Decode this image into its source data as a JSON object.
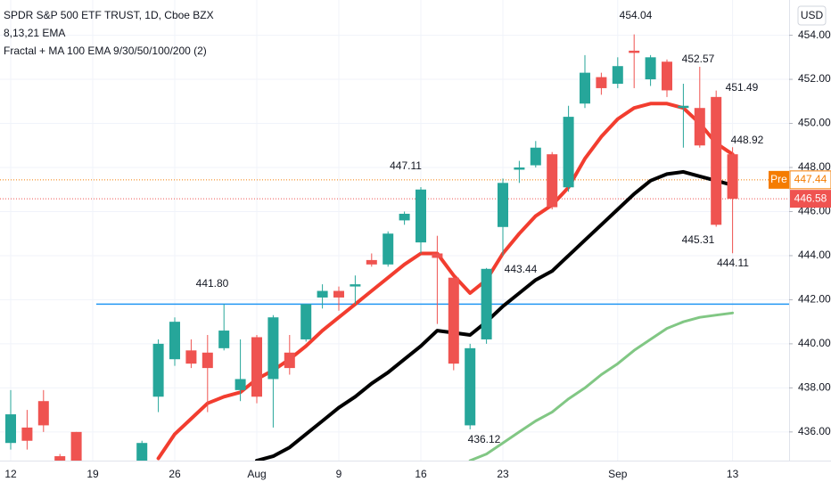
{
  "chart_data": {
    "type": "candlestick",
    "title": "SPDR S&P 500 ETF TRUST, 1D, Cboe BZX",
    "indicators": [
      "8,13,21 EMA",
      "Fractal + MA 100 EMA 9/30/50/100/200 (2)"
    ],
    "currency": "USD",
    "categories": [
      "12",
      null,
      null,
      null,
      null,
      "19",
      null,
      null,
      null,
      null,
      "26",
      null,
      null,
      null,
      null,
      "Aug",
      null,
      null,
      null,
      null,
      "9",
      null,
      null,
      null,
      null,
      "16",
      null,
      null,
      null,
      null,
      "23",
      null,
      null,
      null,
      null,
      null,
      null,
      "Sep",
      null,
      null,
      null,
      null,
      null,
      null,
      "13"
    ],
    "open": [
      435.5,
      436.2,
      437.4,
      434.9,
      436.0,
      null,
      null,
      null,
      434.5,
      437.6,
      439.3,
      439.7,
      439.6,
      439.8,
      437.9,
      440.3,
      438.4,
      439.6,
      440.2,
      442.1,
      442.4,
      442.6,
      443.8,
      443.6,
      445.6,
      444.6,
      444.1,
      443.0,
      436.3,
      440.2,
      445.3,
      447.9,
      448.1,
      448.6,
      447.1,
      450.9,
      452.1,
      451.8,
      453.3,
      452.0,
      452.8,
      450.7,
      450.7,
      451.2,
      448.6
    ],
    "high": [
      437.9,
      437.0,
      437.9,
      435.0,
      436.0,
      null,
      null,
      null,
      435.6,
      440.2,
      441.2,
      440.2,
      440.4,
      441.8,
      440.2,
      440.4,
      441.3,
      440.4,
      441.8,
      442.7,
      442.6,
      443.1,
      444.1,
      445.1,
      446.0,
      447.11,
      444.9,
      443.0,
      440.0,
      443.44,
      447.5,
      448.3,
      449.2,
      448.7,
      450.8,
      453.1,
      452.3,
      453.0,
      454.04,
      453.1,
      452.9,
      451.8,
      452.57,
      451.49,
      448.92
    ],
    "low": [
      435.2,
      435.2,
      436.0,
      434.0,
      433.5,
      null,
      null,
      null,
      434.2,
      436.9,
      439.0,
      438.9,
      436.9,
      439.7,
      437.4,
      437.3,
      436.2,
      438.6,
      440.1,
      441.6,
      441.5,
      441.8,
      443.5,
      443.5,
      445.4,
      444.1,
      440.9,
      438.8,
      436.12,
      440.0,
      444.0,
      447.3,
      448.0,
      446.1,
      446.9,
      450.7,
      451.3,
      451.6,
      451.6,
      451.7,
      451.2,
      448.9,
      448.9,
      445.31,
      444.11
    ],
    "close": [
      436.8,
      435.6,
      436.3,
      434.6,
      434.5,
      null,
      null,
      null,
      435.5,
      440.0,
      441.0,
      439.1,
      438.9,
      440.6,
      438.4,
      437.6,
      441.2,
      438.9,
      441.8,
      442.4,
      442.1,
      442.7,
      443.6,
      445.0,
      445.9,
      447.0,
      443.9,
      439.1,
      439.8,
      443.4,
      447.3,
      448.0,
      448.9,
      446.2,
      450.3,
      452.3,
      451.6,
      452.6,
      453.2,
      453.0,
      451.5,
      450.8,
      449.0,
      445.4,
      446.58
    ],
    "up_color": "#26a69a",
    "down_color": "#ef5350",
    "series": [
      {
        "color": "#f23d2f",
        "values": [
          null,
          null,
          null,
          null,
          null,
          null,
          null,
          null,
          null,
          434.8,
          435.9,
          436.6,
          437.3,
          437.6,
          437.8,
          438.4,
          438.8,
          439.3,
          439.9,
          440.6,
          441.2,
          441.8,
          442.4,
          443.0,
          443.6,
          444.1,
          444.1,
          443.1,
          442.3,
          442.9,
          444.1,
          445.0,
          445.8,
          446.3,
          447.1,
          448.4,
          449.4,
          450.2,
          450.7,
          450.9,
          450.9,
          450.7,
          450.0,
          449.1,
          448.6
        ]
      },
      {
        "color": "#000000",
        "values": [
          null,
          null,
          null,
          null,
          null,
          null,
          null,
          null,
          null,
          null,
          null,
          null,
          null,
          null,
          null,
          434.7,
          434.9,
          435.3,
          435.9,
          436.5,
          437.1,
          437.6,
          438.2,
          438.7,
          439.3,
          439.9,
          440.6,
          440.5,
          440.4,
          441.0,
          441.7,
          442.3,
          442.9,
          443.3,
          444.0,
          444.7,
          445.4,
          446.1,
          446.8,
          447.4,
          447.7,
          447.8,
          447.6,
          447.4,
          447.2
        ]
      },
      {
        "color": "#81c784",
        "values": [
          null,
          null,
          null,
          null,
          null,
          null,
          null,
          null,
          null,
          null,
          null,
          null,
          null,
          null,
          null,
          null,
          null,
          null,
          null,
          null,
          null,
          null,
          null,
          null,
          null,
          null,
          null,
          null,
          434.7,
          435.0,
          435.5,
          436.0,
          436.5,
          436.9,
          437.5,
          438.0,
          438.6,
          439.1,
          439.7,
          440.2,
          440.7,
          441.0,
          441.2,
          441.3,
          441.4
        ]
      }
    ],
    "level_line": {
      "value": 441.8,
      "color": "#2196f3"
    },
    "premarket": {
      "label": "Pre",
      "value": 447.44,
      "color": "#f57c00"
    },
    "last_price": {
      "value": 446.58,
      "color": "#ef5350"
    },
    "annotations": [
      "454.04",
      "452.57",
      "451.49",
      "448.92",
      "447.11",
      "441.80",
      "443.44",
      "445.31",
      "444.11",
      "436.12"
    ],
    "ylim": [
      434.7,
      455.6
    ],
    "yticks": [
      {
        "value": 436,
        "label": "436.00"
      },
      {
        "value": 438,
        "label": "438.00"
      },
      {
        "value": 440,
        "label": "440.00"
      },
      {
        "value": 442,
        "label": "442.00"
      },
      {
        "value": 444,
        "label": "444.00"
      },
      {
        "value": 446,
        "label": "446.00"
      },
      {
        "value": 448,
        "label": "448.00"
      },
      {
        "value": 450,
        "label": "450.00"
      },
      {
        "value": 452,
        "label": "452.00"
      },
      {
        "value": 454,
        "label": "454.00"
      }
    ],
    "grid": true
  }
}
